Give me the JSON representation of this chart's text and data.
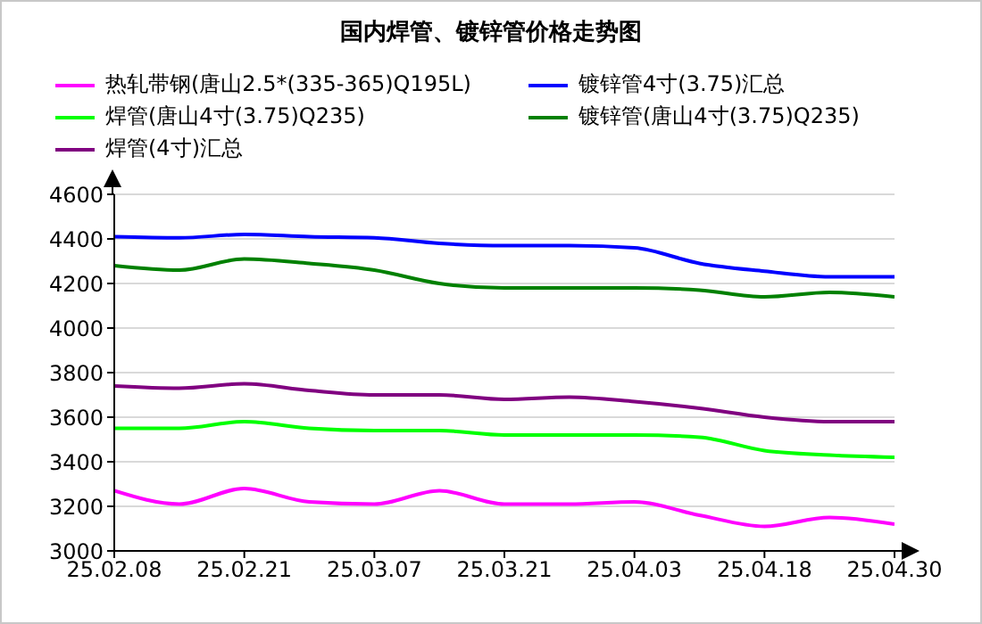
{
  "chart_data": {
    "type": "line",
    "title": "国内焊管、镀锌管价格走势图",
    "categories": [
      "25.02.08",
      null,
      "25.02.21",
      null,
      "25.03.07",
      null,
      "25.03.21",
      null,
      "25.04.03",
      null,
      "25.04.18",
      null,
      "25.04.30"
    ],
    "series": [
      {
        "name": "热轧带钢(唐山2.5*(335-365)Q195L)",
        "color": "#ff00ff",
        "values": [
          3270,
          3210,
          3280,
          3220,
          3210,
          3270,
          3210,
          3210,
          3220,
          3160,
          3110,
          3150,
          3120
        ]
      },
      {
        "name": "镀锌管4寸(3.75)汇总",
        "color": "#0000ff",
        "values": [
          4410,
          4405,
          4420,
          4410,
          4405,
          4380,
          4370,
          4370,
          4360,
          4290,
          4255,
          4230,
          4230
        ]
      },
      {
        "name": "焊管(唐山4寸(3.75)Q235)",
        "color": "#00ff00",
        "values": [
          3550,
          3550,
          3580,
          3550,
          3540,
          3540,
          3520,
          3520,
          3520,
          3510,
          3450,
          3430,
          3420
        ]
      },
      {
        "name": "镀锌管(唐山4寸(3.75)Q235)",
        "color": "#008000",
        "values": [
          4280,
          4260,
          4310,
          4290,
          4260,
          4200,
          4180,
          4180,
          4180,
          4170,
          4140,
          4160,
          4140
        ]
      },
      {
        "name": "焊管(4寸)汇总",
        "color": "#800080",
        "values": [
          3740,
          3730,
          3750,
          3720,
          3700,
          3700,
          3680,
          3690,
          3670,
          3640,
          3600,
          3580,
          3580
        ]
      }
    ],
    "ylim": [
      3000,
      4600
    ],
    "yticks": [
      3000,
      3200,
      3400,
      3600,
      3800,
      4000,
      4200,
      4400,
      4600
    ],
    "grid": "y",
    "legend": "top",
    "marker": "none",
    "line_style": "solid"
  }
}
